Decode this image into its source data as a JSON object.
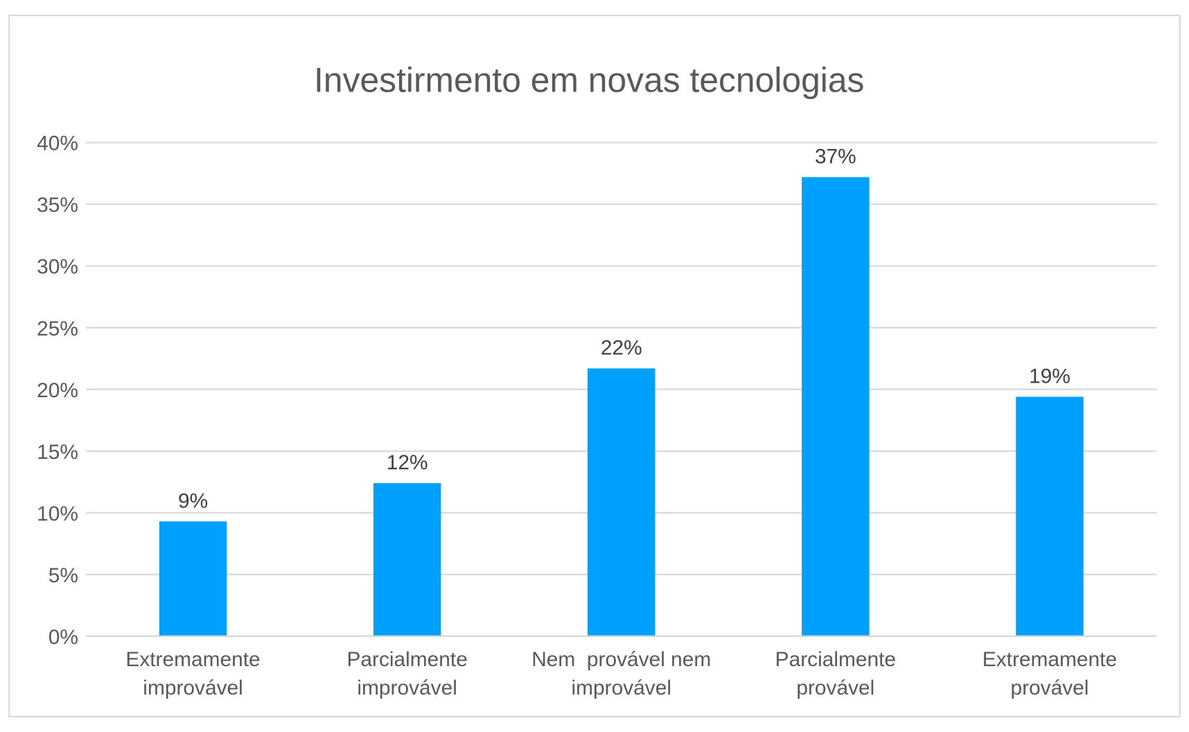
{
  "chart_data": {
    "type": "bar",
    "title": "Investirmento em novas tecnologias",
    "xlabel": "",
    "ylabel": "",
    "categories": [
      [
        "Extremamente",
        "improvável"
      ],
      [
        "Parcialmente",
        "improvável"
      ],
      [
        "Nem  provável nem",
        "improvável"
      ],
      [
        "Parcialmente",
        "provável"
      ],
      [
        "Extremamente",
        "provável"
      ]
    ],
    "values": [
      9.3,
      12.4,
      21.7,
      37.2,
      19.4
    ],
    "data_labels": [
      "9%",
      "12%",
      "22%",
      "37%",
      "19%"
    ],
    "ylim": [
      0,
      40
    ],
    "yticks": [
      "0%",
      "5%",
      "10%",
      "15%",
      "20%",
      "25%",
      "30%",
      "35%",
      "40%"
    ],
    "grid": true,
    "legend": "none",
    "bar_color": "#00A0FF",
    "grid_color": "#D9D9D9"
  }
}
